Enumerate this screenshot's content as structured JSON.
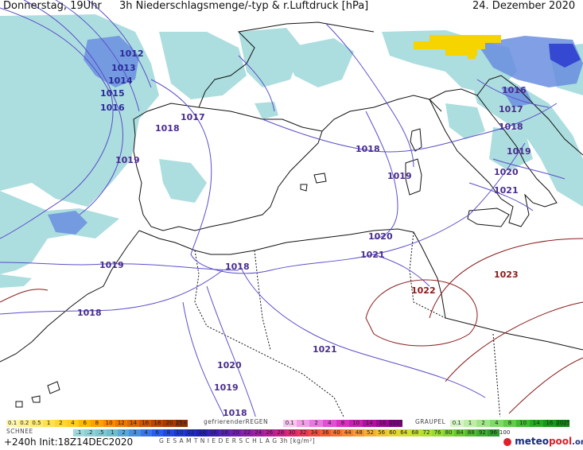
{
  "header": {
    "day_time": "Donnerstag, 19Uhr",
    "title": "3h Niederschlagsmenge/-typ & r.Luftdruck [hPa]",
    "date": "24. Dezember 2020"
  },
  "isobar_labels": [
    {
      "text": "1012",
      "color": "#2b2b9a"
    },
    {
      "text": "1013",
      "color": "#2b2b9a"
    },
    {
      "text": "1014",
      "color": "#2b2b9a"
    },
    {
      "text": "1015",
      "color": "#2b2b9a"
    },
    {
      "text": "1016",
      "color": "#2b2b9a"
    },
    {
      "text": "1017",
      "color": "#4a2d8f"
    },
    {
      "text": "1018",
      "color": "#4a2d8f"
    },
    {
      "text": "1019",
      "color": "#4a2d8f"
    },
    {
      "text": "1018",
      "color": "#4a2d8f"
    },
    {
      "text": "1019",
      "color": "#4a2d8f"
    },
    {
      "text": "1018",
      "color": "#4a2d8f"
    },
    {
      "text": "1019",
      "color": "#4a2d8f"
    },
    {
      "text": "1018",
      "color": "#4a2d8f"
    },
    {
      "text": "1020",
      "color": "#4a2d8f"
    },
    {
      "text": "1021",
      "color": "#4a2d8f"
    },
    {
      "text": "1022",
      "color": "#8b1a1a"
    },
    {
      "text": "1023",
      "color": "#8b1a1a"
    },
    {
      "text": "1021",
      "color": "#4a2d8f"
    },
    {
      "text": "1020",
      "color": "#4a2d8f"
    },
    {
      "text": "1019",
      "color": "#4a2d8f"
    },
    {
      "text": "1018",
      "color": "#4a2d8f"
    },
    {
      "text": "1016",
      "color": "#4a2d8f"
    },
    {
      "text": "1017",
      "color": "#4a2d8f"
    },
    {
      "text": "1018",
      "color": "#4a2d8f"
    },
    {
      "text": "1019",
      "color": "#4a2d8f"
    },
    {
      "text": "1020",
      "color": "#4a2d8f"
    },
    {
      "text": "1021",
      "color": "#4a2d8f"
    }
  ],
  "legend": {
    "schnee_label": "SCHNEE",
    "gefrierender_label": "gefrierenderREGEN",
    "graupel_label": "GRAUPEL",
    "gesamt_label": "G E S A M T N I E D E R S C H L A G   3h   [kg/m²]",
    "yellow_scale": [
      "0.1",
      "0.2",
      "0.5",
      "1",
      "2",
      "4",
      "6",
      "8",
      "10",
      "12",
      "14",
      "16",
      "18",
      "20",
      "25+"
    ],
    "pink_scale": [
      "0.1",
      "1",
      "2",
      "4",
      "8",
      "10",
      "14",
      "16",
      "2025+"
    ],
    "green_scale": [
      "0.1",
      "1",
      "2",
      "4",
      "8",
      "10",
      "14",
      "16",
      "2025+"
    ],
    "total_scale": [
      ".1",
      ".2",
      ".5",
      "1",
      "2",
      "3",
      "4",
      "6",
      "8",
      "10",
      "12",
      "14",
      "16",
      "18",
      "20",
      "22",
      "24",
      "26",
      "28",
      "30",
      "32",
      "34",
      "36",
      "40",
      "44",
      "48",
      "52",
      "56",
      "60",
      "64",
      "68",
      "72",
      "76",
      "80",
      "84",
      "88",
      "92",
      "96",
      "100"
    ],
    "yellow_colors": [
      "#fff7b0",
      "#fff090",
      "#ffe970",
      "#ffe050",
      "#ffd630",
      "#ffcc20",
      "#ffb800",
      "#ffa000",
      "#ff8800",
      "#ee7700",
      "#dd6600",
      "#cc5500",
      "#bb4400",
      "#a83a00",
      "#8a2f00"
    ],
    "pink_colors": [
      "#f7c6ef",
      "#f09ee6",
      "#e878dd",
      "#e050d0",
      "#d830c0",
      "#c820b0",
      "#b010a0",
      "#980890",
      "#800080"
    ],
    "green_colors": [
      "#d6f5c6",
      "#bdeea8",
      "#a0e588",
      "#80da68",
      "#60cc48",
      "#40bb30",
      "#28aa20",
      "#189818",
      "#108810"
    ],
    "total_colors": [
      "#9fd7dc",
      "#8fcfd6",
      "#7fc6d0",
      "#6fbccb",
      "#5aa6d6",
      "#4a8ee0",
      "#3a74e8",
      "#2a5cf0",
      "#2248e0",
      "#1c38d0",
      "#1a2cc0",
      "#2020b0",
      "#3a20b0",
      "#5520b0",
      "#7020b0",
      "#8a20a8",
      "#a020a0",
      "#b82098",
      "#cc2088",
      "#dd2a70",
      "#e83858",
      "#f04a40",
      "#f55c30",
      "#f87030",
      "#fa8430",
      "#fa9a30",
      "#f6b030",
      "#efc430",
      "#e6d430",
      "#d6dc30",
      "#c4e030",
      "#b0e030",
      "#98dc30",
      "#80d430",
      "#68c830",
      "#52bc30",
      "#40ac30",
      "#309c30",
      "#ffffff"
    ]
  },
  "footer": {
    "forecast": "+240h  Init:18Z14DEC2020",
    "brand_prefix": "meteo",
    "brand_suffix": "pool",
    "brand_tld": ".org"
  }
}
